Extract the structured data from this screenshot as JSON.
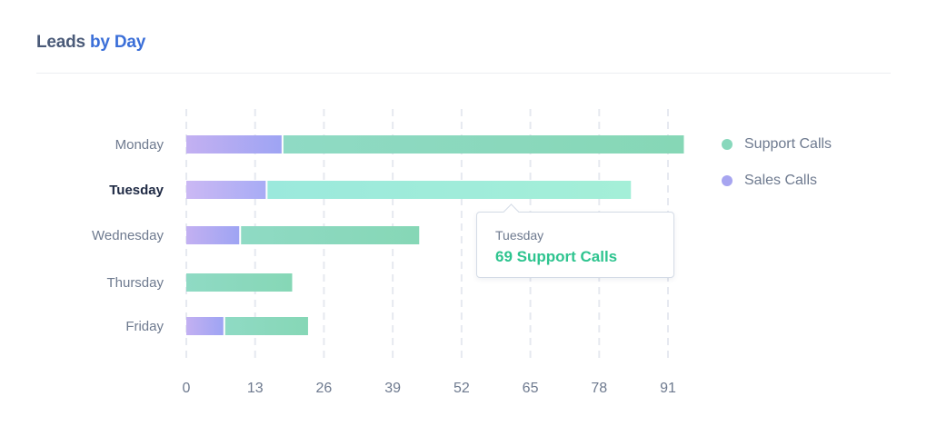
{
  "header": {
    "title_part1": "Leads",
    "title_part2": "by Day"
  },
  "tooltip": {
    "day": "Tuesday",
    "value_label": "69 Support Calls"
  },
  "legend": [
    {
      "label": "Support Calls",
      "color": "#88d8bc"
    },
    {
      "label": "Sales Calls",
      "color": "#a7a5f0"
    }
  ],
  "chart_data": {
    "type": "bar",
    "orientation": "horizontal",
    "stacked": true,
    "categories": [
      "Monday",
      "Tuesday",
      "Wednesday",
      "Thursday",
      "Friday"
    ],
    "highlighted_category": "Tuesday",
    "series": [
      {
        "name": "Sales Calls",
        "values": [
          18,
          15,
          10,
          0,
          7
        ],
        "color": "#a3a4f3"
      },
      {
        "name": "Support Calls",
        "values": [
          76,
          69,
          34,
          20,
          16
        ],
        "color": "#88d8bc"
      }
    ],
    "xticks": [
      0,
      13,
      26,
      39,
      52,
      65,
      78,
      91
    ],
    "xlim": [
      0,
      91
    ],
    "grid": true,
    "legend_position": "right"
  }
}
